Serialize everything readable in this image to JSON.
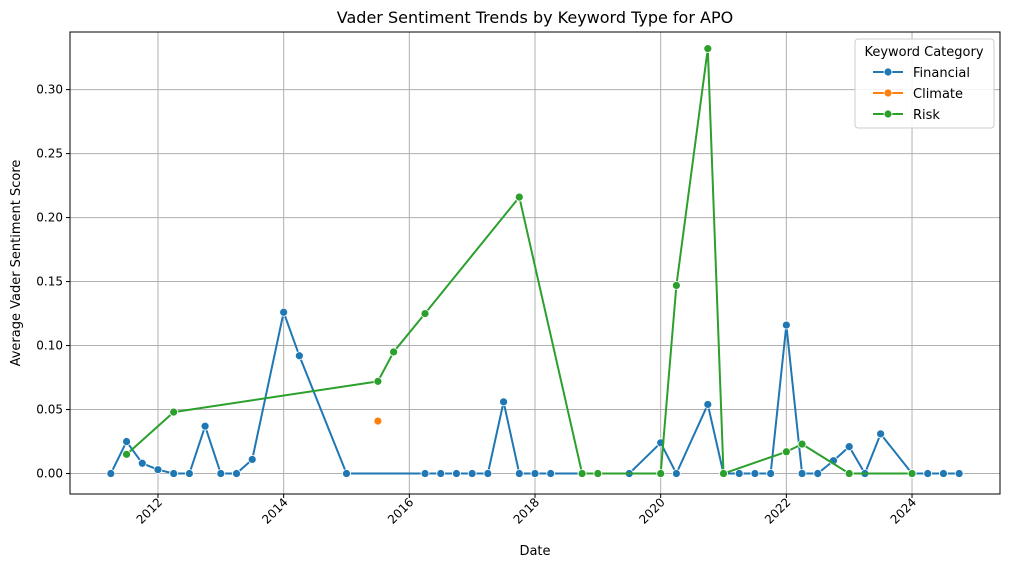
{
  "chart_data": {
    "type": "line",
    "title": "Vader Sentiment Trends by Keyword Type for APO",
    "xlabel": "Date",
    "ylabel": "Average Vader Sentiment Score",
    "xlim": [
      2010.6,
      2025.4
    ],
    "ylim": [
      -0.016,
      0.345
    ],
    "x_ticks": [
      2012,
      2014,
      2016,
      2018,
      2020,
      2022,
      2024
    ],
    "x_tick_labels": [
      "2012",
      "2014",
      "2016",
      "2018",
      "2020",
      "2022",
      "2024"
    ],
    "y_ticks": [
      0.0,
      0.05,
      0.1,
      0.15,
      0.2,
      0.25,
      0.3
    ],
    "y_tick_labels": [
      "0.00",
      "0.05",
      "0.10",
      "0.15",
      "0.20",
      "0.25",
      "0.30"
    ],
    "grid": true,
    "legend": {
      "title": "Keyword Category",
      "placement": "top-right"
    },
    "series": [
      {
        "name": "Financial",
        "color": "#1f77b4",
        "points": [
          [
            2011.25,
            0.0
          ],
          [
            2011.5,
            0.025
          ],
          [
            2011.75,
            0.008
          ],
          [
            2012.0,
            0.003
          ],
          [
            2012.25,
            0.0
          ],
          [
            2012.5,
            0.0
          ],
          [
            2012.75,
            0.037
          ],
          [
            2013.0,
            0.0
          ],
          [
            2013.25,
            0.0
          ],
          [
            2013.5,
            0.011
          ],
          [
            2014.0,
            0.126
          ],
          [
            2014.25,
            0.092
          ],
          [
            2015.0,
            0.0
          ],
          [
            2016.25,
            0.0
          ],
          [
            2016.5,
            0.0
          ],
          [
            2016.75,
            0.0
          ],
          [
            2017.0,
            0.0
          ],
          [
            2017.25,
            0.0
          ],
          [
            2017.5,
            0.056
          ],
          [
            2017.75,
            0.0
          ],
          [
            2018.0,
            0.0
          ],
          [
            2018.25,
            0.0
          ],
          [
            2018.75,
            0.0
          ],
          [
            2019.0,
            0.0
          ],
          [
            2019.5,
            0.0
          ],
          [
            2020.0,
            0.024
          ],
          [
            2020.25,
            0.0
          ],
          [
            2020.75,
            0.054
          ],
          [
            2021.0,
            0.0
          ],
          [
            2021.25,
            0.0
          ],
          [
            2021.5,
            0.0
          ],
          [
            2021.75,
            0.0
          ],
          [
            2022.0,
            0.116
          ],
          [
            2022.25,
            0.0
          ],
          [
            2022.5,
            0.0
          ],
          [
            2022.75,
            0.01
          ],
          [
            2023.0,
            0.021
          ],
          [
            2023.25,
            0.0
          ],
          [
            2023.5,
            0.031
          ],
          [
            2024.0,
            0.0
          ],
          [
            2024.25,
            0.0
          ],
          [
            2024.5,
            0.0
          ],
          [
            2024.75,
            0.0
          ]
        ]
      },
      {
        "name": "Climate",
        "color": "#ff7f0e",
        "points": [
          [
            2015.5,
            0.041
          ]
        ]
      },
      {
        "name": "Risk",
        "color": "#2ca02c",
        "points": [
          [
            2011.5,
            0.015
          ],
          [
            2012.25,
            0.048
          ],
          [
            2015.5,
            0.072
          ],
          [
            2015.75,
            0.095
          ],
          [
            2016.25,
            0.125
          ],
          [
            2017.75,
            0.216
          ],
          [
            2018.75,
            0.0
          ],
          [
            2019.0,
            0.0
          ],
          [
            2020.0,
            0.0
          ],
          [
            2020.25,
            0.147
          ],
          [
            2020.75,
            0.332
          ],
          [
            2021.0,
            0.0
          ],
          [
            2022.0,
            0.017
          ],
          [
            2022.25,
            0.023
          ],
          [
            2023.0,
            0.0
          ],
          [
            2024.0,
            0.0
          ]
        ]
      }
    ]
  }
}
